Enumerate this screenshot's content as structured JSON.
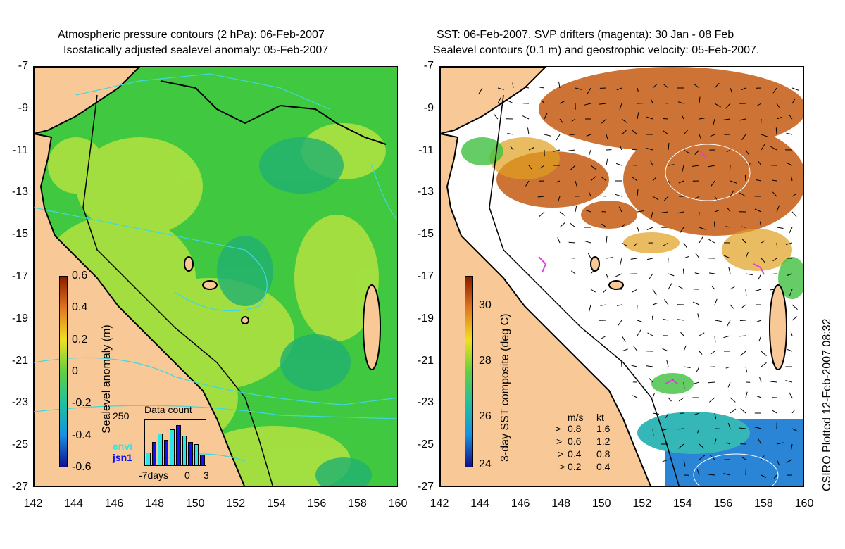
{
  "left_panel": {
    "title_line1": "Atmospheric pressure contours (2 hPa): 06-Feb-2007",
    "title_line2": "Isostatically adjusted sealevel anomaly: 05-Feb-2007",
    "colorbar_label": "Sealevel anomaly (m)",
    "colorbar_ticks": [
      "0.6",
      "0.4",
      "0.2",
      "0",
      "-0.2",
      "-0.4",
      "-0.6"
    ],
    "inset": {
      "title": "Data count",
      "max_label": "250",
      "series": [
        "envi",
        "jsn1"
      ],
      "series_colors": [
        "#2ee6e6",
        "#1010ff"
      ],
      "x_labels": [
        "-7days",
        "0",
        "3"
      ],
      "bars": [
        0.3,
        0.55,
        0.75,
        0.6,
        0.85,
        0.95,
        0.7,
        0.55,
        0.5,
        0.25
      ]
    }
  },
  "right_panel": {
    "title_line1": "SST: 06-Feb-2007. SVP drifters (magenta): 30 Jan - 08 Feb",
    "title_line2": "Sealevel contours (0.1 m) and geostrophic velocity: 05-Feb-2007.",
    "colorbar_label": "3-day SST composite (deg C)",
    "colorbar_ticks": [
      "30",
      "28",
      "26",
      "24"
    ],
    "velocity_legend": {
      "header_ms": "m/s",
      "header_kt": "kt",
      "rows": [
        {
          "ms": "0.8",
          "kt": "1.6"
        },
        {
          "ms": "0.6",
          "kt": "1.2"
        },
        {
          "ms": "0.4",
          "kt": "0.8"
        },
        {
          "ms": "0.2",
          "kt": "0.4"
        }
      ]
    },
    "credit": "CSIRO Plotted 12-Feb-2007 08:32"
  },
  "axes": {
    "y_ticks": [
      "-7",
      "-9",
      "-11",
      "-13",
      "-15",
      "-17",
      "-19",
      "-21",
      "-23",
      "-25",
      "-27"
    ],
    "x_ticks": [
      "142",
      "144",
      "146",
      "148",
      "150",
      "152",
      "154",
      "156",
      "158",
      "160"
    ]
  },
  "colors": {
    "land": "#f8c896",
    "ocean_green": "#38c838",
    "ocean_yellowgreen": "#a0e040",
    "contour_cyan": "#3ed8e0",
    "sst_orange": "#c86420",
    "sst_blue": "#1478d2",
    "drifter_magenta": "#e040e0"
  }
}
